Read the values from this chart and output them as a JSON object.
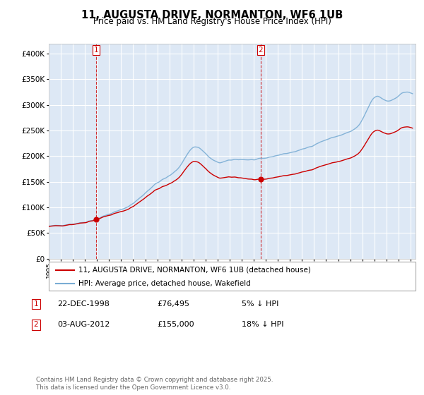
{
  "title": "11, AUGUSTA DRIVE, NORMANTON, WF6 1UB",
  "subtitle": "Price paid vs. HM Land Registry's House Price Index (HPI)",
  "legend_label_red": "11, AUGUSTA DRIVE, NORMANTON, WF6 1UB (detached house)",
  "legend_label_blue": "HPI: Average price, detached house, Wakefield",
  "transaction1_date": "22-DEC-1998",
  "transaction1_price": "£76,495",
  "transaction1_note": "5% ↓ HPI",
  "transaction2_date": "03-AUG-2012",
  "transaction2_price": "£155,000",
  "transaction2_note": "18% ↓ HPI",
  "footer": "Contains HM Land Registry data © Crown copyright and database right 2025.\nThis data is licensed under the Open Government Licence v3.0.",
  "background_color": "#ffffff",
  "plot_bg_color": "#dde8f5",
  "grid_color": "#ffffff",
  "red_color": "#cc0000",
  "blue_color": "#7aadd4",
  "dashed_color": "#cc0000",
  "ylim": [
    0,
    420000
  ],
  "yticks": [
    0,
    50000,
    100000,
    150000,
    200000,
    250000,
    300000,
    350000,
    400000
  ]
}
